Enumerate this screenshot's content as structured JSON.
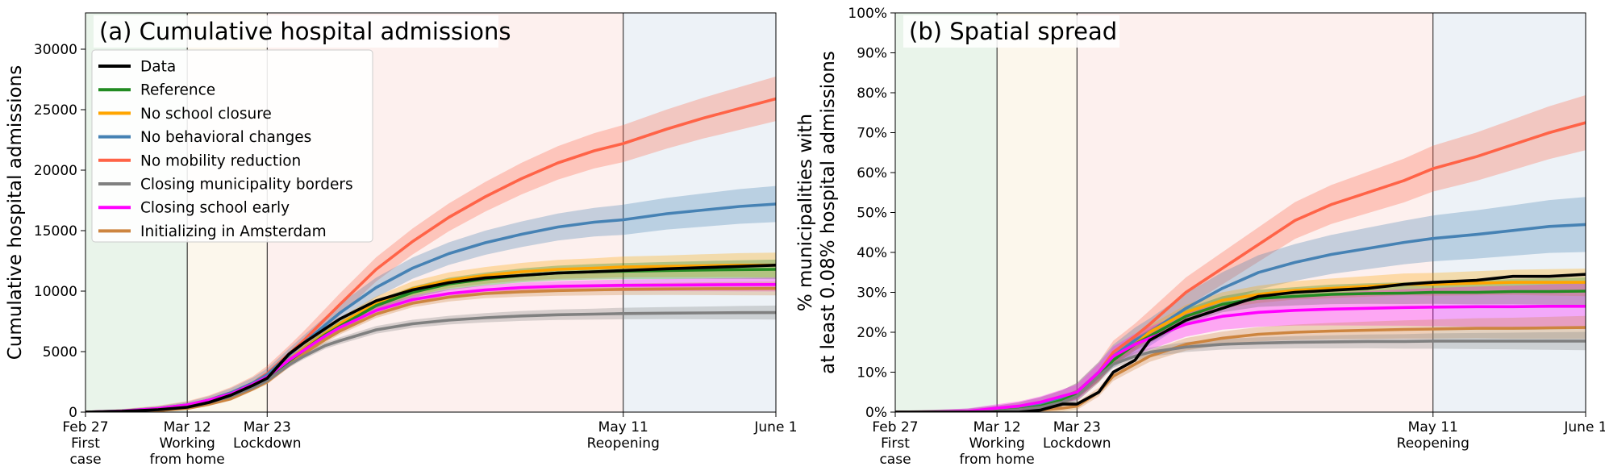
{
  "chart_data": [
    {
      "type": "line",
      "title": "(a) Cumulative hospital admissions",
      "ylabel": "Cumulative hospital admissions",
      "xlabel": "",
      "xlim": [
        0,
        95
      ],
      "ylim": [
        0,
        33000
      ],
      "yticks": [
        0,
        5000,
        10000,
        15000,
        20000,
        25000,
        30000
      ],
      "ytick_labels": [
        "0",
        "5000",
        "10000",
        "15000",
        "20000",
        "25000",
        "30000"
      ],
      "x_ticks": [
        {
          "x": 0,
          "lines": [
            "Feb 27",
            "First",
            "case"
          ]
        },
        {
          "x": 14,
          "lines": [
            "Mar 12",
            "Working",
            "from home"
          ]
        },
        {
          "x": 25,
          "lines": [
            "Mar 23",
            "Lockdown"
          ]
        },
        {
          "x": 74,
          "lines": [
            "May 11",
            "Reopening"
          ]
        },
        {
          "x": 95,
          "lines": [
            "June 1"
          ]
        }
      ],
      "phases": [
        {
          "from": 0,
          "to": 14,
          "color": "#e9f4ea"
        },
        {
          "from": 14,
          "to": 25,
          "color": "#fcf7ec"
        },
        {
          "from": 25,
          "to": 74,
          "color": "#fdf0ee"
        },
        {
          "from": 74,
          "to": 95,
          "color": "#edf2f7"
        }
      ],
      "legend": "upper-left",
      "x": [
        0,
        5,
        10,
        14,
        17,
        20,
        23,
        25,
        28,
        30,
        33,
        35,
        40,
        45,
        50,
        55,
        60,
        65,
        70,
        74,
        80,
        85,
        90,
        95
      ],
      "series": [
        {
          "name": "No mobility reduction",
          "color": "#ff6347",
          "band": 1600,
          "values": [
            0,
            100,
            300,
            600,
            1000,
            1600,
            2400,
            3200,
            4800,
            5900,
            7700,
            8900,
            11800,
            14100,
            16100,
            17800,
            19300,
            20600,
            21600,
            22200,
            23400,
            24300,
            25100,
            25900
          ]
        },
        {
          "name": "No behavioral changes",
          "color": "#4682b4",
          "band": 1300,
          "values": [
            0,
            100,
            300,
            600,
            1000,
            1600,
            2400,
            3100,
            4700,
            5700,
            7200,
            8200,
            10300,
            11900,
            13100,
            14000,
            14700,
            15300,
            15700,
            15900,
            16400,
            16700,
            17000,
            17200
          ]
        },
        {
          "name": "No school closure",
          "color": "#ffa500",
          "band": 900,
          "values": [
            0,
            60,
            220,
            450,
            850,
            1400,
            2200,
            2900,
            4300,
            5200,
            6500,
            7300,
            9000,
            10200,
            10900,
            11300,
            11600,
            11800,
            11900,
            12000,
            12050,
            12100,
            12150,
            12150
          ]
        },
        {
          "name": "Reference",
          "color": "#228b22",
          "band": 700,
          "values": [
            0,
            60,
            200,
            420,
            800,
            1350,
            2100,
            2800,
            4200,
            5100,
            6400,
            7100,
            8800,
            9900,
            10600,
            11000,
            11300,
            11500,
            11600,
            11650,
            11700,
            11750,
            11780,
            11800
          ]
        },
        {
          "name": "Closing school early",
          "color": "#ff00ff",
          "band": 500,
          "values": [
            0,
            80,
            300,
            600,
            1000,
            1500,
            2300,
            2900,
            4300,
            5100,
            6300,
            7000,
            8400,
            9300,
            9800,
            10100,
            10300,
            10400,
            10450,
            10480,
            10500,
            10520,
            10540,
            10550
          ]
        },
        {
          "name": "Initializing in Amsterdam",
          "color": "#cd853f",
          "band": 500,
          "values": [
            0,
            30,
            120,
            300,
            650,
            1100,
            1900,
            2500,
            3900,
            4800,
            6000,
            6700,
            8100,
            9000,
            9500,
            9800,
            9950,
            10050,
            10100,
            10150,
            10180,
            10200,
            10210,
            10220
          ]
        },
        {
          "name": "Closing municipality borders",
          "color": "#808080",
          "band": 500,
          "values": [
            0,
            50,
            200,
            420,
            800,
            1300,
            2000,
            2600,
            3900,
            4600,
            5500,
            5900,
            6800,
            7300,
            7600,
            7800,
            7950,
            8050,
            8100,
            8150,
            8180,
            8200,
            8220,
            8230
          ]
        },
        {
          "name": "Data",
          "color": "#000000",
          "band": 0,
          "values": [
            0,
            60,
            200,
            400,
            800,
            1400,
            2200,
            2800,
            4800,
            5700,
            6900,
            7700,
            9200,
            10100,
            10700,
            11100,
            11300,
            11500,
            11600,
            11700,
            11850,
            11950,
            12050,
            12150
          ]
        }
      ],
      "legend_order": [
        "Data",
        "Reference",
        "No school closure",
        "No behavioral changes",
        "No mobility reduction",
        "Closing municipality borders",
        "Closing school early",
        "Initializing in Amsterdam"
      ]
    },
    {
      "type": "line",
      "title": "(b) Spatial spread",
      "ylabel_lines": [
        "% municipalities with",
        "at least 0.08% hospital admissions"
      ],
      "xlabel": "",
      "xlim": [
        0,
        95
      ],
      "ylim": [
        0,
        100
      ],
      "yticks": [
        0,
        10,
        20,
        30,
        40,
        50,
        60,
        70,
        80,
        90,
        100
      ],
      "ytick_labels": [
        "0%",
        "10%",
        "20%",
        "30%",
        "40%",
        "50%",
        "60%",
        "70%",
        "80%",
        "90%",
        "100%"
      ],
      "x_ticks": [
        {
          "x": 0,
          "lines": [
            "Feb 27",
            "First",
            "case"
          ]
        },
        {
          "x": 14,
          "lines": [
            "Mar 12",
            "Working",
            "from home"
          ]
        },
        {
          "x": 25,
          "lines": [
            "Mar 23",
            "Lockdown"
          ]
        },
        {
          "x": 74,
          "lines": [
            "May 11",
            "Reopening"
          ]
        },
        {
          "x": 95,
          "lines": [
            "June 1"
          ]
        }
      ],
      "phases": [
        {
          "from": 0,
          "to": 14,
          "color": "#e9f4ea"
        },
        {
          "from": 14,
          "to": 25,
          "color": "#fcf7ec"
        },
        {
          "from": 25,
          "to": 74,
          "color": "#fdf0ee"
        },
        {
          "from": 74,
          "to": 95,
          "color": "#edf2f7"
        }
      ],
      "x": [
        0,
        5,
        10,
        14,
        17,
        20,
        23,
        25,
        28,
        30,
        33,
        35,
        40,
        45,
        50,
        55,
        60,
        65,
        70,
        74,
        80,
        85,
        90,
        95
      ],
      "series": [
        {
          "name": "No mobility reduction",
          "color": "#ff6347",
          "band": 6,
          "values": [
            0,
            0,
            0,
            0.5,
            1,
            2,
            3.5,
            5,
            10,
            15,
            19,
            22,
            30,
            36,
            42,
            48,
            52,
            55,
            58,
            61,
            64,
            67,
            70,
            72.5
          ]
        },
        {
          "name": "No behavioral changes",
          "color": "#4682b4",
          "band": 6,
          "values": [
            0,
            0,
            0,
            0.5,
            1,
            2,
            3.5,
            5,
            10,
            14,
            18,
            20,
            26,
            31,
            35,
            37.5,
            39.5,
            41,
            42.5,
            43.5,
            44.5,
            45.5,
            46.5,
            47
          ]
        },
        {
          "name": "No school closure",
          "color": "#ffa500",
          "band": 3,
          "values": [
            0,
            0,
            0,
            0.3,
            0.7,
            1.5,
            3,
            4.5,
            9,
            13,
            17,
            20,
            25,
            28,
            29.5,
            30.5,
            31,
            31.5,
            32,
            32,
            32.3,
            32.5,
            32.5,
            32.5
          ]
        },
        {
          "name": "Reference",
          "color": "#228b22",
          "band": 3,
          "values": [
            0,
            0,
            0,
            0.3,
            0.7,
            1.5,
            3,
            4.5,
            9,
            13,
            17,
            19,
            24,
            27,
            28.5,
            29,
            29.5,
            29.7,
            29.8,
            30,
            30,
            30.2,
            30.2,
            30.3
          ]
        },
        {
          "name": "Closing school early",
          "color": "#ff00ff",
          "band": 5,
          "values": [
            0,
            0,
            0.2,
            1,
            1.5,
            2.5,
            4,
            5,
            10,
            14,
            17,
            18.5,
            22,
            24,
            25,
            25.5,
            25.8,
            26,
            26.2,
            26.3,
            26.4,
            26.4,
            26.5,
            26.5
          ]
        },
        {
          "name": "Initializing in Amsterdam",
          "color": "#cd853f",
          "band": 2.5,
          "values": [
            0,
            0,
            0,
            0,
            0.2,
            0.5,
            1,
            1.5,
            5,
            9,
            12,
            14,
            17,
            18.5,
            19.5,
            20,
            20.3,
            20.5,
            20.7,
            20.8,
            21,
            21,
            21.1,
            21.2
          ]
        },
        {
          "name": "Closing municipality borders",
          "color": "#808080",
          "band": 2,
          "values": [
            0,
            0,
            0,
            0.2,
            0.6,
            1.2,
            2.5,
            4,
            9,
            12,
            14,
            15,
            16.3,
            17,
            17.3,
            17.5,
            17.6,
            17.7,
            17.7,
            17.8,
            17.8,
            17.8,
            17.8,
            17.8
          ]
        },
        {
          "name": "Data",
          "color": "#000000",
          "band": 0,
          "values": [
            0,
            0,
            0,
            0,
            0,
            0.5,
            2,
            2,
            5,
            10,
            13,
            18,
            23,
            26,
            29,
            30,
            30.5,
            31,
            32,
            32.5,
            33,
            34,
            34,
            34.5
          ]
        }
      ]
    }
  ]
}
